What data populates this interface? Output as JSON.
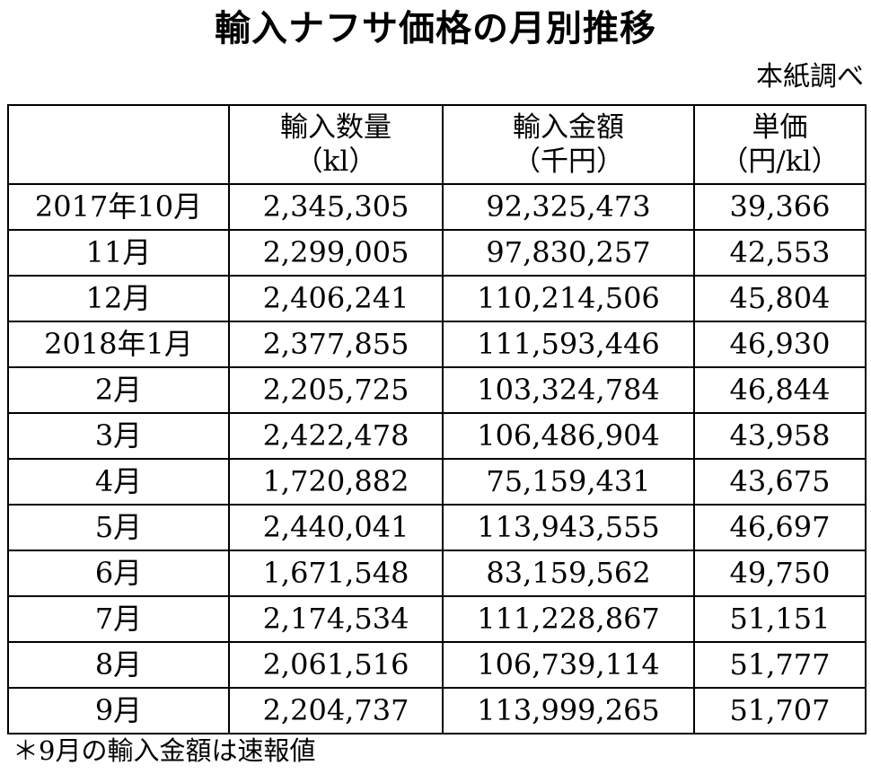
{
  "title": "輸入ナフサ価格の月別推移",
  "source": "本紙調べ",
  "table": {
    "headers": [
      {
        "line1": "",
        "line2": ""
      },
      {
        "line1": "輸入数量",
        "line2": "（kl）"
      },
      {
        "line1": "輸入金額",
        "line2": "（千円）"
      },
      {
        "line1": "単価",
        "line2": "（円/kl）"
      }
    ],
    "rows": [
      [
        "2017年10月",
        "2,345,305",
        "92,325,473",
        "39,366"
      ],
      [
        "11月",
        "2,299,005",
        "97,830,257",
        "42,553"
      ],
      [
        "12月",
        "2,406,241",
        "110,214,506",
        "45,804"
      ],
      [
        "2018年1月",
        "2,377,855",
        "111,593,446",
        "46,930"
      ],
      [
        "2月",
        "2,205,725",
        "103,324,784",
        "46,844"
      ],
      [
        "3月",
        "2,422,478",
        "106,486,904",
        "43,958"
      ],
      [
        "4月",
        "1,720,882",
        "75,159,431",
        "43,675"
      ],
      [
        "5月",
        "2,440,041",
        "113,943,555",
        "46,697"
      ],
      [
        "6月",
        "1,671,548",
        "83,159,562",
        "49,750"
      ],
      [
        "7月",
        "2,174,534",
        "111,228,867",
        "51,151"
      ],
      [
        "8月",
        "2,061,516",
        "106,739,114",
        "51,777"
      ],
      [
        "9月",
        "2,204,737",
        "113,999,265",
        "51,707"
      ]
    ]
  },
  "footnote": "＊9月の輸入金額は速報値"
}
